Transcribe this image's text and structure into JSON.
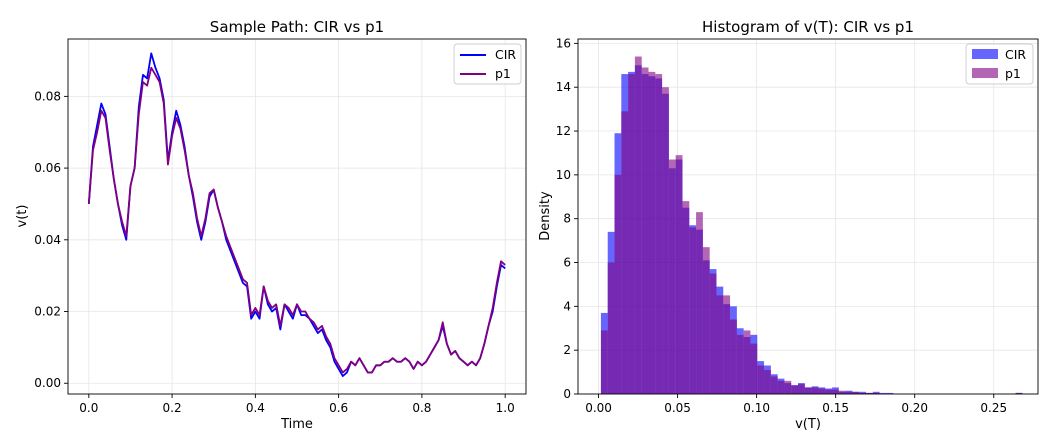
{
  "chart_data": [
    {
      "type": "line",
      "title": "Sample Path: CIR vs p1",
      "xlabel": "Time",
      "ylabel": "v(t)",
      "xlim": [
        -0.05,
        1.05
      ],
      "ylim": [
        -0.003,
        0.096
      ],
      "xticks": [
        0.0,
        0.2,
        0.4,
        0.6,
        0.8,
        1.0
      ],
      "xtick_labels": [
        "0.0",
        "0.2",
        "0.4",
        "0.6",
        "0.8",
        "1.0"
      ],
      "yticks": [
        0.0,
        0.02,
        0.04,
        0.06,
        0.08
      ],
      "ytick_labels": [
        "0.00",
        "0.02",
        "0.04",
        "0.06",
        "0.08"
      ],
      "grid": true,
      "legend_position": "top-right",
      "series": [
        {
          "name": "CIR",
          "color": "#0000ff",
          "x": [
            0.0,
            0.01,
            0.02,
            0.03,
            0.04,
            0.05,
            0.06,
            0.07,
            0.08,
            0.09,
            0.1,
            0.11,
            0.12,
            0.13,
            0.14,
            0.15,
            0.16,
            0.17,
            0.18,
            0.19,
            0.2,
            0.21,
            0.22,
            0.23,
            0.24,
            0.25,
            0.26,
            0.27,
            0.28,
            0.29,
            0.3,
            0.31,
            0.32,
            0.33,
            0.34,
            0.35,
            0.36,
            0.37,
            0.38,
            0.39,
            0.4,
            0.41,
            0.42,
            0.43,
            0.44,
            0.45,
            0.46,
            0.47,
            0.48,
            0.49,
            0.5,
            0.51,
            0.52,
            0.53,
            0.54,
            0.55,
            0.56,
            0.57,
            0.58,
            0.59,
            0.6,
            0.61,
            0.62,
            0.63,
            0.64,
            0.65,
            0.66,
            0.67,
            0.68,
            0.69,
            0.7,
            0.71,
            0.72,
            0.73,
            0.74,
            0.75,
            0.76,
            0.77,
            0.78,
            0.79,
            0.8,
            0.81,
            0.82,
            0.83,
            0.84,
            0.85,
            0.86,
            0.87,
            0.88,
            0.89,
            0.9,
            0.91,
            0.92,
            0.93,
            0.94,
            0.95,
            0.96,
            0.97,
            0.98,
            0.99,
            1.0
          ],
          "y": [
            0.05,
            0.066,
            0.072,
            0.078,
            0.075,
            0.066,
            0.057,
            0.05,
            0.044,
            0.04,
            0.055,
            0.06,
            0.077,
            0.086,
            0.085,
            0.092,
            0.088,
            0.085,
            0.079,
            0.062,
            0.07,
            0.076,
            0.072,
            0.066,
            0.058,
            0.052,
            0.045,
            0.04,
            0.045,
            0.052,
            0.054,
            0.049,
            0.045,
            0.04,
            0.037,
            0.034,
            0.031,
            0.028,
            0.027,
            0.018,
            0.02,
            0.018,
            0.027,
            0.022,
            0.02,
            0.021,
            0.015,
            0.022,
            0.02,
            0.018,
            0.022,
            0.019,
            0.019,
            0.018,
            0.016,
            0.014,
            0.015,
            0.012,
            0.01,
            0.006,
            0.004,
            0.002,
            0.003,
            0.006,
            0.005,
            0.007,
            0.005,
            0.003,
            0.003,
            0.005,
            0.005,
            0.006,
            0.006,
            0.007,
            0.006,
            0.006,
            0.007,
            0.006,
            0.004,
            0.006,
            0.005,
            0.006,
            0.008,
            0.01,
            0.012,
            0.016,
            0.011,
            0.008,
            0.009,
            0.007,
            0.006,
            0.005,
            0.006,
            0.005,
            0.007,
            0.011,
            0.016,
            0.02,
            0.027,
            0.033,
            0.032
          ]
        },
        {
          "name": "p1",
          "color": "#800080",
          "x": [
            0.0,
            0.01,
            0.02,
            0.03,
            0.04,
            0.05,
            0.06,
            0.07,
            0.08,
            0.09,
            0.1,
            0.11,
            0.12,
            0.13,
            0.14,
            0.15,
            0.16,
            0.17,
            0.18,
            0.19,
            0.2,
            0.21,
            0.22,
            0.23,
            0.24,
            0.25,
            0.26,
            0.27,
            0.28,
            0.29,
            0.3,
            0.31,
            0.32,
            0.33,
            0.34,
            0.35,
            0.36,
            0.37,
            0.38,
            0.39,
            0.4,
            0.41,
            0.42,
            0.43,
            0.44,
            0.45,
            0.46,
            0.47,
            0.48,
            0.49,
            0.5,
            0.51,
            0.52,
            0.53,
            0.54,
            0.55,
            0.56,
            0.57,
            0.58,
            0.59,
            0.6,
            0.61,
            0.62,
            0.63,
            0.64,
            0.65,
            0.66,
            0.67,
            0.68,
            0.69,
            0.7,
            0.71,
            0.72,
            0.73,
            0.74,
            0.75,
            0.76,
            0.77,
            0.78,
            0.79,
            0.8,
            0.81,
            0.82,
            0.83,
            0.84,
            0.85,
            0.86,
            0.87,
            0.88,
            0.89,
            0.9,
            0.91,
            0.92,
            0.93,
            0.94,
            0.95,
            0.96,
            0.97,
            0.98,
            0.99,
            1.0
          ],
          "y": [
            0.05,
            0.065,
            0.07,
            0.076,
            0.074,
            0.065,
            0.057,
            0.05,
            0.045,
            0.041,
            0.055,
            0.06,
            0.075,
            0.084,
            0.083,
            0.088,
            0.086,
            0.084,
            0.078,
            0.061,
            0.069,
            0.074,
            0.071,
            0.065,
            0.058,
            0.053,
            0.046,
            0.041,
            0.046,
            0.053,
            0.054,
            0.049,
            0.045,
            0.041,
            0.038,
            0.035,
            0.032,
            0.029,
            0.028,
            0.019,
            0.021,
            0.019,
            0.027,
            0.023,
            0.021,
            0.022,
            0.016,
            0.022,
            0.021,
            0.019,
            0.022,
            0.02,
            0.02,
            0.018,
            0.017,
            0.015,
            0.016,
            0.013,
            0.011,
            0.007,
            0.005,
            0.003,
            0.004,
            0.006,
            0.005,
            0.007,
            0.005,
            0.003,
            0.003,
            0.005,
            0.005,
            0.006,
            0.006,
            0.007,
            0.006,
            0.006,
            0.007,
            0.006,
            0.004,
            0.006,
            0.005,
            0.006,
            0.008,
            0.01,
            0.012,
            0.017,
            0.011,
            0.008,
            0.009,
            0.007,
            0.006,
            0.005,
            0.006,
            0.005,
            0.007,
            0.011,
            0.016,
            0.021,
            0.028,
            0.034,
            0.033
          ]
        }
      ]
    },
    {
      "type": "histogram",
      "title": "Histogram of v(T): CIR vs p1",
      "xlabel": "v(T)",
      "ylabel": "Density",
      "xlim": [
        -0.013,
        0.278
      ],
      "ylim": [
        0,
        16.2
      ],
      "xticks": [
        0.0,
        0.05,
        0.1,
        0.15,
        0.2,
        0.25
      ],
      "xtick_labels": [
        "0.00",
        "0.05",
        "0.10",
        "0.15",
        "0.20",
        "0.25"
      ],
      "yticks": [
        0,
        2,
        4,
        6,
        8,
        10,
        12,
        14,
        16
      ],
      "ytick_labels": [
        "0",
        "2",
        "4",
        "6",
        "8",
        "10",
        "12",
        "14",
        "16"
      ],
      "grid": true,
      "legend_position": "top-right",
      "series": [
        {
          "name": "CIR",
          "color": "#0000ff",
          "opacity": 0.6,
          "bin_start": 0.0015,
          "bin_width": 0.0043,
          "values": [
            3.7,
            7.4,
            11.9,
            14.6,
            14.7,
            15.0,
            14.6,
            14.5,
            14.4,
            13.7,
            10.3,
            10.7,
            8.5,
            7.7,
            7.5,
            6.1,
            5.7,
            4.9,
            4.1,
            4.0,
            3.0,
            2.6,
            2.7,
            1.5,
            1.3,
            0.9,
            0.7,
            0.5,
            0.4,
            0.5,
            0.3,
            0.35,
            0.3,
            0.25,
            0.3,
            0.1,
            0.15,
            0.1,
            0.1,
            0.05,
            0.1,
            0.05,
            0.05,
            0.0,
            0.0,
            0.0,
            0.0,
            0.0,
            0.0,
            0.0,
            0.0,
            0.0,
            0.0,
            0.0,
            0.0,
            0.0,
            0.0,
            0.0,
            0.0,
            0.0,
            0.0,
            0.05
          ]
        },
        {
          "name": "p1",
          "color": "#800080",
          "opacity": 0.6,
          "bin_start": 0.0015,
          "bin_width": 0.0043,
          "values": [
            2.9,
            6.0,
            10.0,
            12.9,
            14.6,
            15.4,
            14.9,
            14.7,
            14.6,
            14.0,
            10.7,
            10.9,
            8.8,
            7.6,
            8.3,
            6.7,
            5.5,
            4.5,
            4.5,
            3.4,
            2.7,
            2.9,
            2.3,
            1.3,
            1.1,
            0.8,
            0.6,
            0.6,
            0.4,
            0.45,
            0.3,
            0.3,
            0.25,
            0.2,
            0.2,
            0.15,
            0.1,
            0.1,
            0.05,
            0.05,
            0.05,
            0.0,
            0.0,
            0.0,
            0.0,
            0.0,
            0.0,
            0.0,
            0.0,
            0.0,
            0.0,
            0.0,
            0.0,
            0.0,
            0.0,
            0.0,
            0.0,
            0.0,
            0.0,
            0.0,
            0.0,
            0.05
          ]
        }
      ]
    }
  ]
}
